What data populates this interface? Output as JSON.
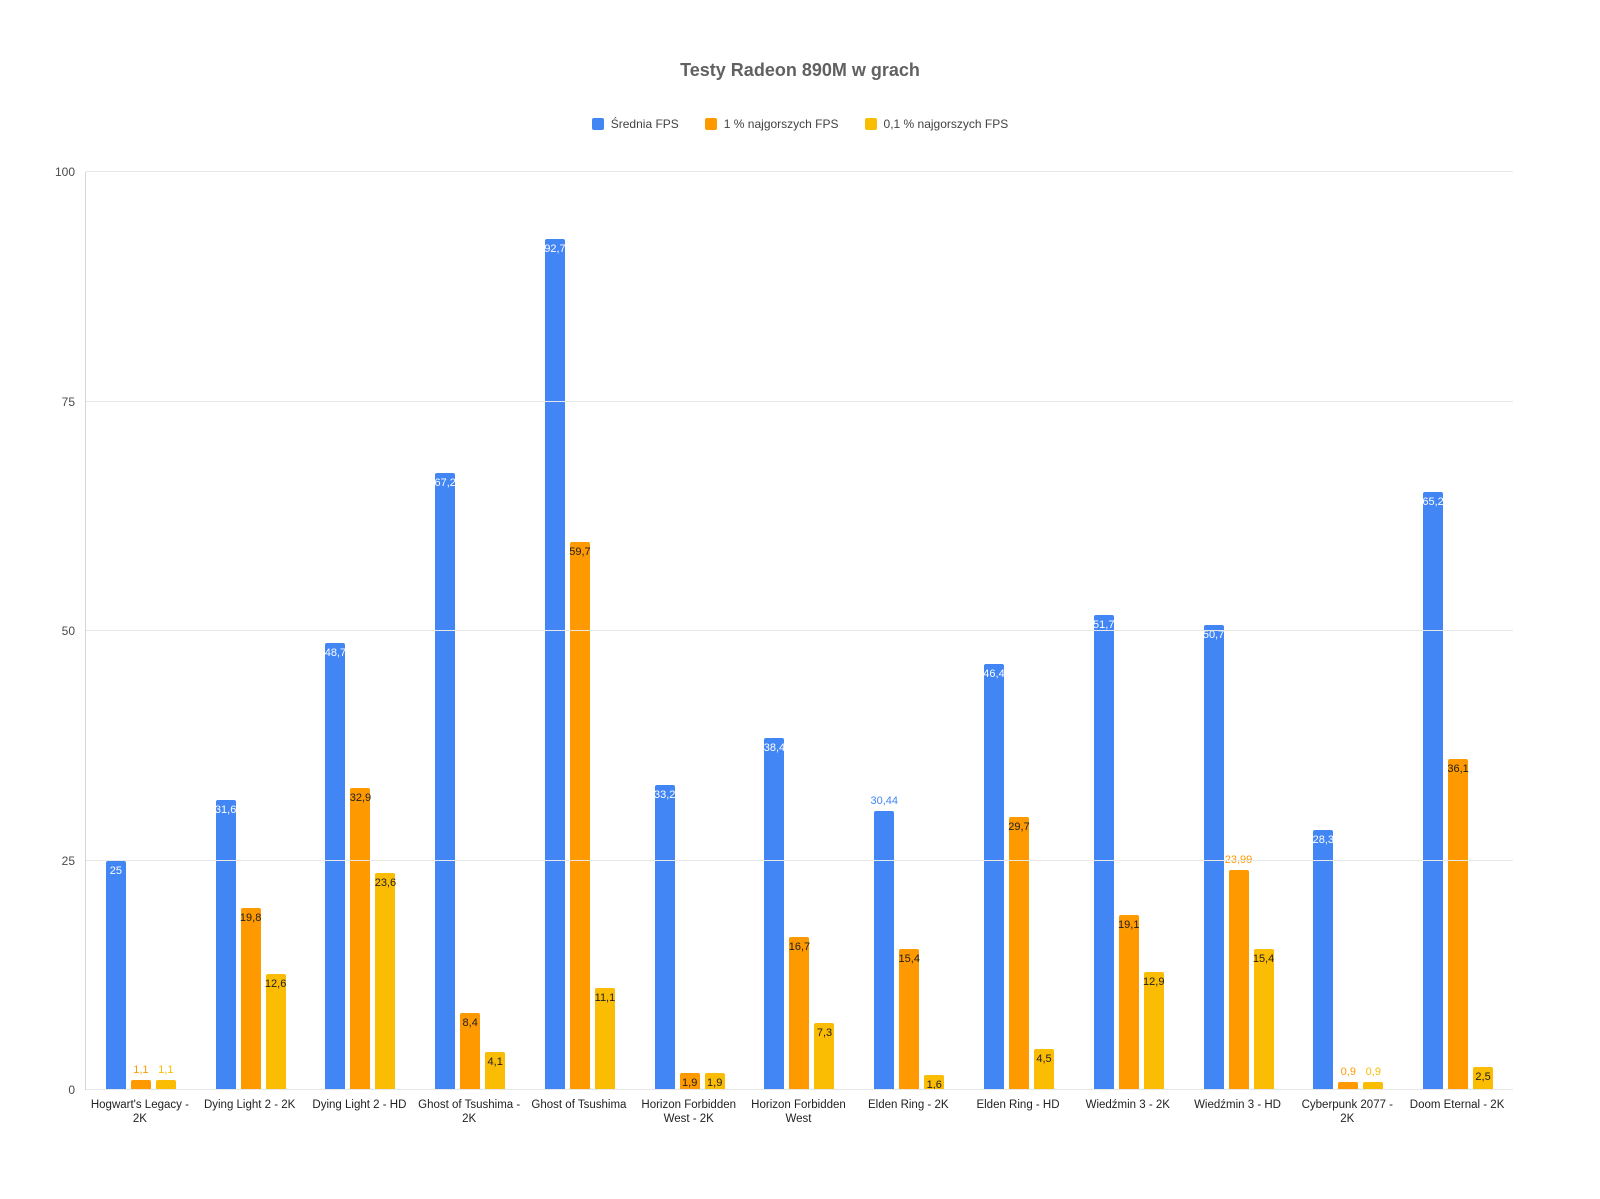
{
  "chart_data": {
    "type": "bar",
    "title": "Testy Radeon 890M w grach",
    "xlabel": "",
    "ylabel": "",
    "ylim": [
      0,
      100
    ],
    "yticks": [
      0,
      25,
      50,
      75,
      100
    ],
    "grid": true,
    "legend_position": "top",
    "background_color": "#ffffff",
    "gridline_color": "#e6e6e6",
    "categories": [
      "Hogwart's Legacy - 2K",
      "Dying Light 2 - 2K",
      "Dying Light 2 - HD",
      "Ghost of Tsushima - 2K",
      "Ghost of Tsushima",
      "Horizon Forbidden West - 2K",
      "Horizon Forbidden West",
      "Elden Ring - 2K",
      "Elden Ring - HD",
      "Wiedźmin 3 - 2K",
      "Wiedźmin 3 - HD",
      "Cyberpunk 2077 - 2K",
      "Doom Eternal - 2K"
    ],
    "series": [
      {
        "name": "Średnia FPS",
        "color": "#4285F4",
        "values": [
          25,
          31.6,
          48.7,
          67.2,
          92.7,
          33.2,
          38.4,
          30.44,
          46.4,
          51.7,
          50.7,
          28.3,
          65.2
        ],
        "labels": [
          "25",
          "31,6",
          "48,7",
          "67,2",
          "92,7",
          "33,2",
          "38,4",
          "30,44",
          "46,4",
          "51,7",
          "50,7",
          "28,3",
          "65,2"
        ]
      },
      {
        "name": "1 % najgorszych FPS",
        "color": "#FF9900",
        "values": [
          1.1,
          19.8,
          32.9,
          8.4,
          59.7,
          1.9,
          16.7,
          15.4,
          29.7,
          19.1,
          23.99,
          0.9,
          36.1
        ],
        "labels": [
          "1,1",
          "19,8",
          "32,9",
          "8,4",
          "59,7",
          "1,9",
          "16,7",
          "15,4",
          "29,7",
          "19,1",
          "23,99",
          "0,9",
          "36,1"
        ]
      },
      {
        "name": "0,1 % najgorszych FPS",
        "color": "#FBBC04",
        "values": [
          1.1,
          12.6,
          23.6,
          4.1,
          11.1,
          1.9,
          7.3,
          1.6,
          4.5,
          12.9,
          15.4,
          0.9,
          2.5
        ],
        "labels": [
          "1,1",
          "12,6",
          "23,6",
          "4,1",
          "11,1",
          "1,9",
          "7,3",
          "1,6",
          "4,5",
          "12,9",
          "15,4",
          "0,9",
          "2,5"
        ]
      }
    ],
    "label_colors": {
      "inside_on_avg_series": "#ffffff",
      "inside_on_other_series": "#212121"
    }
  }
}
